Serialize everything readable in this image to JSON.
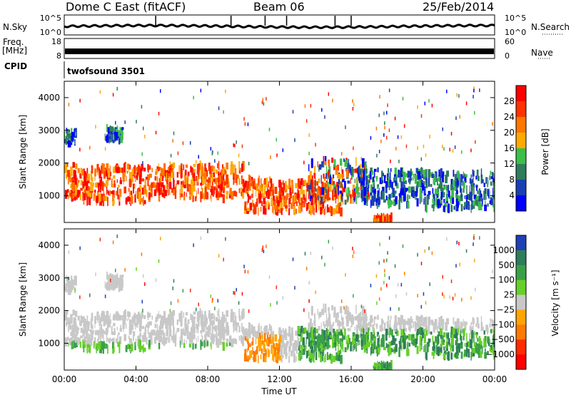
{
  "header": {
    "radar": "Dome C East (fitACF)",
    "beam": "Beam 06",
    "date": "25/Feb/2014"
  },
  "top_panels": {
    "nsky_label": "N.Sky",
    "nsky_ticks": [
      "10^5",
      "10^0"
    ],
    "nsearch_label": "N.Search",
    "nsearch_ticks": [
      "10^5",
      "10^0"
    ],
    "freq_label": "Freq.",
    "freq_unit": "[MHz]",
    "freq_ticks": [
      "18",
      "8"
    ],
    "nave_label": "Nave",
    "nave_ticks": [
      "60",
      "0"
    ],
    "cpid_label": "CPID",
    "cpid_value": "twofsound 3501"
  },
  "chart_data": [
    {
      "type": "heatmap",
      "panel": "power",
      "ylabel": "Slant Range [km]",
      "yticks": [
        "4000",
        "3000",
        "2000",
        "1000"
      ],
      "ylim": [
        180,
        4500
      ],
      "xlim": [
        0,
        24
      ],
      "colorbar_label": "Power [dB]",
      "colorbar_ticks": [
        "28",
        "24",
        "20",
        "16",
        "12",
        "8",
        "4"
      ],
      "colorbar_colors": [
        "#ff0000",
        "#ff3300",
        "#ff7700",
        "#ffaa00",
        "#3cbf48",
        "#2e7d5b",
        "#1a3fb5",
        "#0000ff"
      ]
    },
    {
      "type": "heatmap",
      "panel": "velocity",
      "ylabel": "Slant Range [km]",
      "yticks": [
        "4000",
        "3000",
        "2000",
        "1000"
      ],
      "ylim": [
        180,
        4500
      ],
      "xlim": [
        0,
        24
      ],
      "xlabel": "Time UT",
      "xticks": [
        "00:00",
        "04:00",
        "08:00",
        "12:00",
        "16:00",
        "20:00",
        "00:00"
      ],
      "colorbar_label": "Velocity [m s⁻¹]",
      "colorbar_ticks": [
        "1000",
        "500",
        "100",
        "25",
        "−25",
        "−100",
        "−500",
        "−1000"
      ],
      "colorbar_colors": [
        "#1f3fb4",
        "#2e7d5b",
        "#3aa048",
        "#66d02a",
        "#c8c8c8",
        "#ffa500",
        "#ff7a00",
        "#ff2a00",
        "#ff0000"
      ]
    }
  ]
}
